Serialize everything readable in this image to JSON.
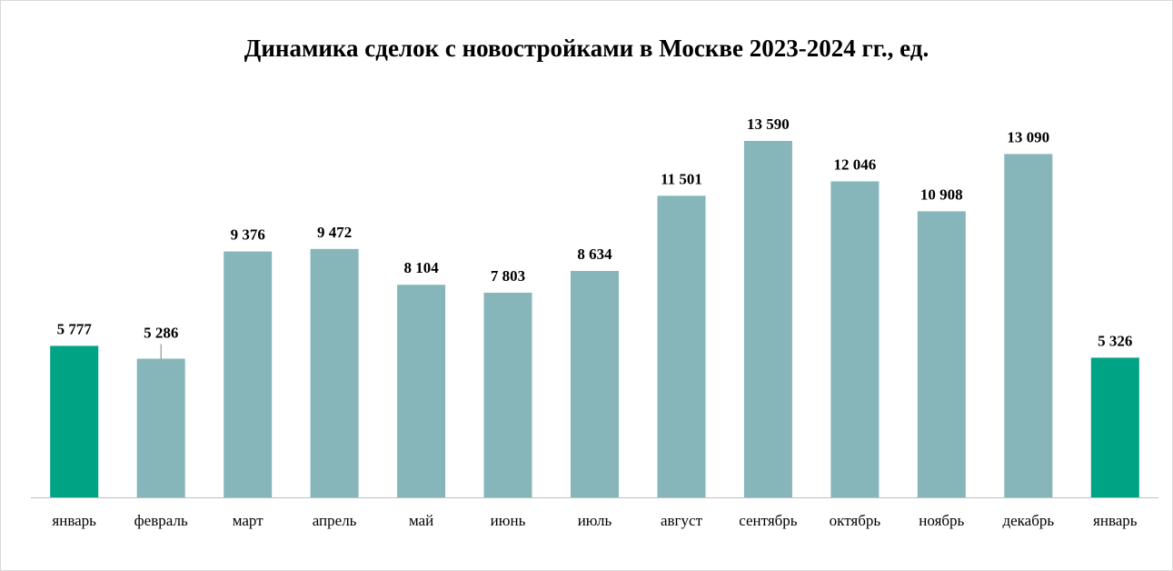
{
  "chart_data": {
    "type": "bar",
    "title": "Динамика сделок с новостройками в Москве 2023-2024 гг., ед.",
    "categories": [
      "январь",
      "февраль",
      "март",
      "апрель",
      "май",
      "июнь",
      "июль",
      "август",
      "сентябрь",
      "октябрь",
      "ноябрь",
      "декабрь",
      "январь"
    ],
    "values": [
      5777,
      5286,
      9376,
      9472,
      8104,
      7803,
      8634,
      11501,
      13590,
      12046,
      10908,
      13090,
      5326
    ],
    "data_labels": [
      "5 777",
      "5 286",
      "9 376",
      "9 472",
      "8 104",
      "7 803",
      "8 634",
      "11 501",
      "13 590",
      "12 046",
      "10 908",
      "13 090",
      "5 326"
    ],
    "highlighted_indices": [
      0,
      12
    ],
    "colors": {
      "default_bar": "#86b5ba",
      "highlight_bar": "#00a384",
      "axis": "#bfbfbf"
    },
    "ylim": [
      0,
      14500
    ],
    "grid": false,
    "xlabel": "",
    "ylabel": ""
  }
}
